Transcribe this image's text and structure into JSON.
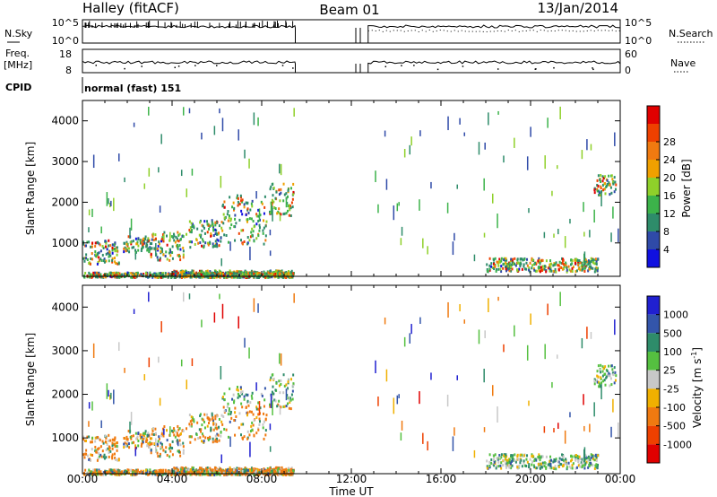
{
  "header": {
    "station": "Halley (fitACF)",
    "beam": "Beam 01",
    "date": "13/Jan/2014"
  },
  "side_labels": {
    "nsky": "N.Sky",
    "freq_top": "Freq.",
    "freq_unit": "[MHz]",
    "cpid": "CPID",
    "nsearch": "N.Search",
    "nave": "Nave"
  },
  "cpid_value": "normal (fast) 151",
  "nsky_ticks": {
    "top": "10^5",
    "bottom": "10^0"
  },
  "nsearch_ticks": {
    "top": "10^5",
    "bottom": "10^0"
  },
  "freq_ticks": {
    "top": "18",
    "bottom": "8"
  },
  "nave_ticks": {
    "top": "60",
    "bottom": "0"
  },
  "chart_data": [
    {
      "type": "heatmap",
      "name": "power",
      "ylabel": "Slant Range [km]",
      "xlabel": "",
      "ylim": [
        180,
        4500
      ],
      "yticks": [
        "1000",
        "2000",
        "3000",
        "4000"
      ],
      "xlim": [
        0,
        24
      ],
      "colorbar_label": "Power [dB]",
      "colorbar_ticks": [
        "4",
        "8",
        "12",
        "16",
        "20",
        "24",
        "28"
      ],
      "colorbar_colors": [
        "#1010e0",
        "#2f4aa8",
        "#2e8c6a",
        "#3cb34a",
        "#8fd02a",
        "#f0a000",
        "#f07a10",
        "#ee4000",
        "#e00000"
      ],
      "coverage_gap_hours": [
        9.5,
        12.75
      ],
      "scatter_regions": [
        {
          "x0": 0.0,
          "x1": 9.5,
          "r0": 180,
          "r1": 2500,
          "dominant": "mid"
        },
        {
          "x0": 18.0,
          "x1": 23.7,
          "r0": 300,
          "r1": 700,
          "dominant": "high"
        }
      ]
    },
    {
      "type": "heatmap",
      "name": "velocity",
      "ylabel": "Slant Range [km]",
      "xlabel": "Time UT",
      "ylim": [
        180,
        4500
      ],
      "yticks": [
        "1000",
        "2000",
        "3000",
        "4000"
      ],
      "xlim": [
        0,
        24
      ],
      "xticks": [
        "00:00",
        "04:00",
        "08:00",
        "12:00",
        "16:00",
        "20:00",
        "00:00"
      ],
      "colorbar_label": "Velocity [m s^-1]",
      "colorbar_ticks": [
        "1000",
        "500",
        "100",
        "25",
        "-25",
        "-100",
        "-500",
        "-1000"
      ],
      "colorbar_colors": [
        "#2020d0",
        "#3355aa",
        "#2e8c6a",
        "#55c040",
        "#c8c8c8",
        "#f0b000",
        "#f07a10",
        "#ee4000",
        "#e00000"
      ]
    }
  ]
}
